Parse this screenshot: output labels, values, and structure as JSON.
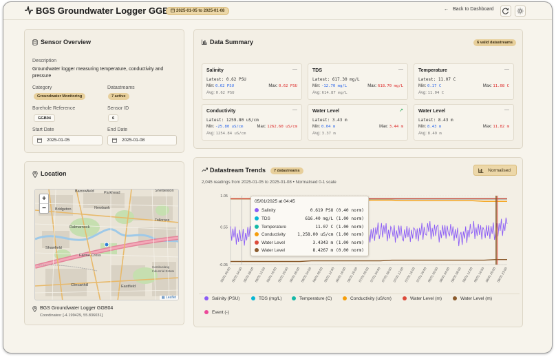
{
  "header": {
    "title": "BGS Groundwater Logger GGB04",
    "date_range": "2025-01-05 to 2025-01-08",
    "back_label": "Back to Dashboard"
  },
  "overview": {
    "title": "Sensor Overview",
    "description_label": "Description",
    "description": "Groundwater logger measuring temperature, conductivity and pressure",
    "category_label": "Category",
    "category": "Groundwater Monitoring",
    "datastreams_label": "Datastreams",
    "datastreams": "7 active",
    "borehole_label": "Borehole Reference",
    "borehole": "GGB04",
    "sensor_id_label": "Sensor ID",
    "sensor_id": "6",
    "start_label": "Start Date",
    "start": "2025-01-05",
    "end_label": "End Date",
    "end": "2025-01-08"
  },
  "location": {
    "title": "Location",
    "name": "BGS Groundwater Logger GGB04",
    "coordinates": "Coordinates: [-4.199429, 55.836031]",
    "zoom_in": "+",
    "zoom_out": "−",
    "attribution": "Leaflet",
    "places": [
      "Barrowfield",
      "Parkhead",
      "Shettleston",
      "Bridgeton",
      "Newbank",
      "Dalmarnock",
      "Tollcross",
      "Shawfield",
      "Farme Cross",
      "Clincarthill",
      "Eastfield",
      "Cambuslang Industrial Estate"
    ]
  },
  "summary": {
    "title": "Data Summary",
    "badge": "6 valid datastreams",
    "cards": [
      {
        "name": "Salinity",
        "latest": "Latest: 0.62 PSU",
        "min_label": "Min:",
        "min": "0.62 PSU",
        "max_label": "Max:",
        "max": "0.62 PSU",
        "avg_label": "Avg:",
        "avg": "0.62 PSU",
        "trend": "—"
      },
      {
        "name": "TDS",
        "latest": "Latest: 617.30 mg/L",
        "min_label": "Min:",
        "min": "-12.70 mg/L",
        "max_label": "Max:",
        "max": "618.70 mg/L",
        "avg_label": "Avg:",
        "avg": "614.87 mg/L",
        "trend": "—"
      },
      {
        "name": "Temperature",
        "latest": "Latest: 11.07 C",
        "min_label": "Min:",
        "min": "0.17 C",
        "max_label": "Max:",
        "max": "11.08 C",
        "avg_label": "Avg:",
        "avg": "11.04 C",
        "trend": "—"
      },
      {
        "name": "Conductivity",
        "latest": "Latest: 1259.80 uS/cm",
        "min_label": "Min:",
        "min": "-25.80 uS/cm",
        "max_label": "Max:",
        "max": "1262.60 uS/cm",
        "avg_label": "Avg:",
        "avg": "1254.84 uS/cm",
        "trend": "—"
      },
      {
        "name": "Water Level",
        "latest": "Latest: 3.43 m",
        "min_label": "Min:",
        "min": "0.04 m",
        "max_label": "Max:",
        "max": "3.44 m",
        "avg_label": "Avg:",
        "avg": "3.37 m",
        "trend": "↗"
      },
      {
        "name": "Water Level",
        "latest": "Latest: 8.43 m",
        "min_label": "Min:",
        "min": "8.43 m",
        "max_label": "Max:",
        "max": "11.82 m",
        "avg_label": "Avg:",
        "avg": "8.49 m",
        "trend": "—"
      }
    ]
  },
  "trends": {
    "title": "Datastream Trends",
    "badge": "7 datastreams",
    "normalised_button": "Normalised",
    "subtitle": "2,045 readings from 2025-01-05 to 2025-01-08 • Normalised 0-1 scale",
    "tooltip": {
      "time": "05/01/2025 at 04:45",
      "rows": [
        {
          "name": "Salinity",
          "value": "0.619 PSU (0.40 norm)",
          "color": "#8b5cf6"
        },
        {
          "name": "TDS",
          "value": "616.40 mg/L (1.00 norm)",
          "color": "#06b6d4"
        },
        {
          "name": "Temperature",
          "value": "11.07 C (1.00 norm)",
          "color": "#14b8a6"
        },
        {
          "name": "Conductivity",
          "value": "1,258.00 uS/cm (1.00 norm)",
          "color": "#f59e0b"
        },
        {
          "name": "Water Level",
          "value": "3.4343 m (1.00 norm)",
          "color": "#dc4a3a"
        },
        {
          "name": "Water Level",
          "value": "8.4267 m (0.00 norm)",
          "color": "#8a5a2b"
        }
      ]
    },
    "legend": [
      {
        "label": "Salinity (PSU)",
        "color": "#8b5cf6"
      },
      {
        "label": "TDS (mg/L)",
        "color": "#06b6d4"
      },
      {
        "label": "Temperature (C)",
        "color": "#14b8a6"
      },
      {
        "label": "Conductivity (uS/cm)",
        "color": "#f59e0b"
      },
      {
        "label": "Water Level (m)",
        "color": "#dc4a3a"
      },
      {
        "label": "Water Level (m)",
        "color": "#8a5a2b"
      },
      {
        "label": "Event (-)",
        "color": "#ec4899"
      }
    ]
  },
  "chart_data": {
    "type": "line",
    "ylim": [
      -0.05,
      1.05
    ],
    "yticks": [
      "1.05",
      "0.55",
      "-0.05"
    ],
    "ytick_values": [
      1.05,
      0.55,
      -0.05
    ],
    "x": [
      "05/01 00:00",
      "05/01 04:00",
      "05/01 08:00",
      "05/01 12:00",
      "05/01 16:00",
      "05/01 20:00",
      "06/01 00:00",
      "06/01 04:00",
      "06/01 08:00",
      "06/01 12:00",
      "06/01 16:00",
      "06/01 20:00",
      "07/01 00:00",
      "07/01 04:00",
      "07/01 08:00",
      "07/01 12:00",
      "07/01 16:00",
      "07/01 20:00",
      "08/01 00:00",
      "08/01 04:00",
      "08/01 08:00",
      "08/01 12:00",
      "08/01 16:00",
      "08/01 20:00",
      "08/01 23:00"
    ],
    "series": [
      {
        "name": "Salinity (PSU)",
        "color": "#8b5cf6",
        "values": [
          0.46,
          0.38,
          0.5,
          0.44,
          0.52,
          0.4,
          0.47,
          0.35,
          0.55,
          0.42,
          0.5,
          0.46,
          0.38,
          0.52,
          0.44,
          0.48,
          0.4,
          0.54,
          0.45,
          0.5,
          0.37,
          0.52,
          0.46,
          0.5,
          0.6
        ]
      },
      {
        "name": "TDS (mg/L)",
        "color": "#06b6d4",
        "values": [
          1.0,
          1.0,
          1.0,
          1.0,
          1.0,
          1.0,
          1.0,
          1.0,
          1.0,
          1.0,
          1.0,
          1.0,
          1.0,
          1.0,
          1.0,
          1.0,
          1.0,
          1.0,
          1.0,
          1.0,
          1.0,
          1.0,
          1.0,
          1.0,
          1.0
        ]
      },
      {
        "name": "Temperature (C)",
        "color": "#14b8a6",
        "values": [
          1.0,
          1.0,
          1.0,
          1.0,
          1.0,
          1.0,
          1.0,
          1.0,
          1.0,
          1.0,
          1.0,
          1.0,
          1.0,
          1.0,
          1.0,
          1.0,
          1.0,
          1.0,
          1.0,
          1.0,
          1.0,
          1.0,
          1.0,
          1.0,
          1.0
        ]
      },
      {
        "name": "Conductivity (uS/cm)",
        "color": "#f59e0b",
        "values": [
          1.0,
          1.0,
          1.0,
          0.99,
          0.99,
          0.99,
          0.99,
          0.99,
          0.99,
          0.98,
          0.98,
          0.98,
          0.98,
          0.98,
          0.98,
          0.97,
          0.97,
          0.97,
          0.97,
          0.97,
          0.97,
          0.97,
          0.96,
          0.96,
          0.96
        ]
      },
      {
        "name": "Water Level (m)",
        "color": "#dc4a3a",
        "values": [
          1.0,
          1.0,
          1.0,
          1.0,
          1.0,
          1.0,
          1.0,
          1.0,
          1.0,
          1.0,
          1.0,
          1.0,
          1.0,
          1.0,
          1.0,
          1.0,
          1.0,
          1.0,
          1.0,
          1.0,
          1.0,
          1.0,
          1.0,
          1.0,
          1.0
        ]
      },
      {
        "name": "Water Level (m)",
        "color": "#8a5a2b",
        "values": [
          0.0,
          0.0,
          0.0,
          0.0,
          0.0,
          0.0,
          0.0,
          0.01,
          0.01,
          0.01,
          0.01,
          0.01,
          0.01,
          0.01,
          0.02,
          0.02,
          0.02,
          0.02,
          0.02,
          0.02,
          0.02,
          0.02,
          0.02,
          0.03,
          0.03
        ]
      }
    ]
  }
}
